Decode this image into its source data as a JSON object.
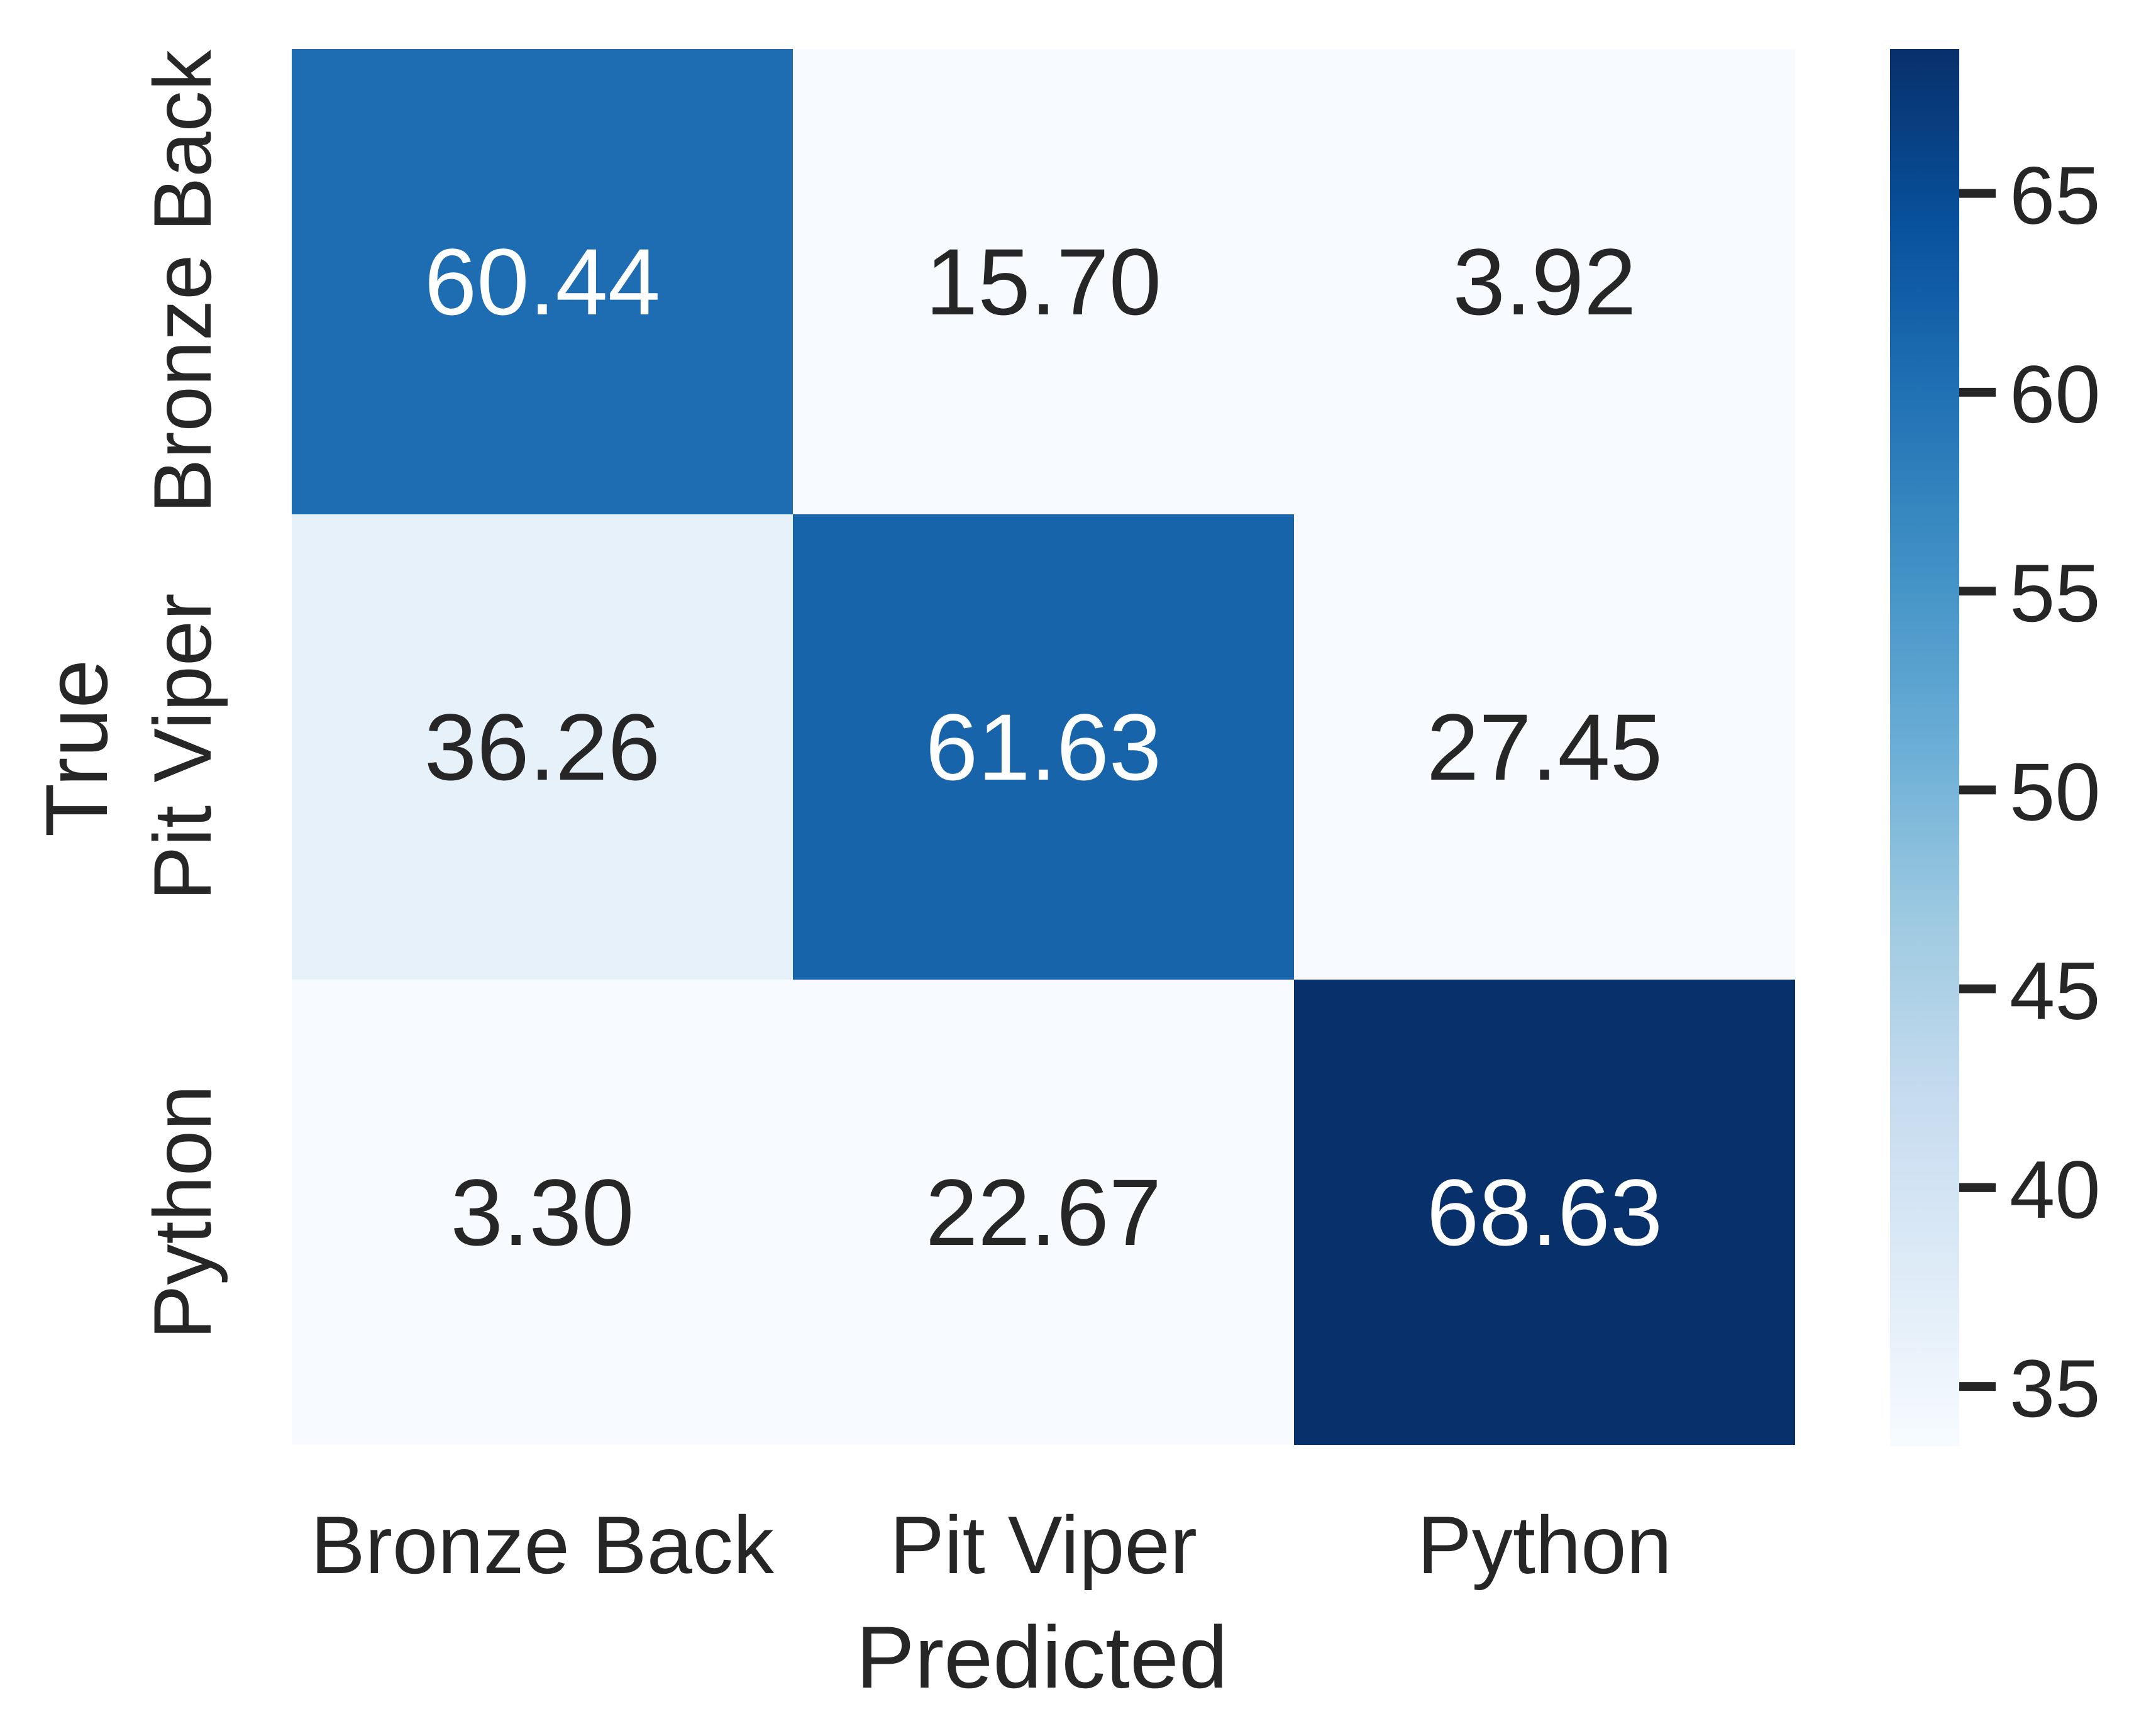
{
  "chart_data": {
    "type": "heatmap",
    "xlabel": "Predicted",
    "ylabel": "True",
    "x_categories": [
      "Bronze Back",
      "Pit Viper",
      "Python"
    ],
    "y_categories": [
      "Bronze Back",
      "Pit Viper",
      "Python"
    ],
    "values": [
      [
        60.44,
        15.7,
        3.92
      ],
      [
        36.26,
        61.63,
        27.45
      ],
      [
        3.3,
        22.67,
        68.63
      ]
    ],
    "value_labels": [
      [
        "60.44",
        "15.70",
        "3.92"
      ],
      [
        "36.26",
        "61.63",
        "27.45"
      ],
      [
        "3.30",
        "22.67",
        "68.63"
      ]
    ],
    "colormap": "Blues",
    "colorbar": {
      "range": [
        33.5,
        68.63
      ],
      "ticks": [
        35,
        40,
        45,
        50,
        55,
        60,
        65
      ]
    },
    "colors": {
      "text_dark": "#262626",
      "text_light": "#ffffff"
    }
  }
}
